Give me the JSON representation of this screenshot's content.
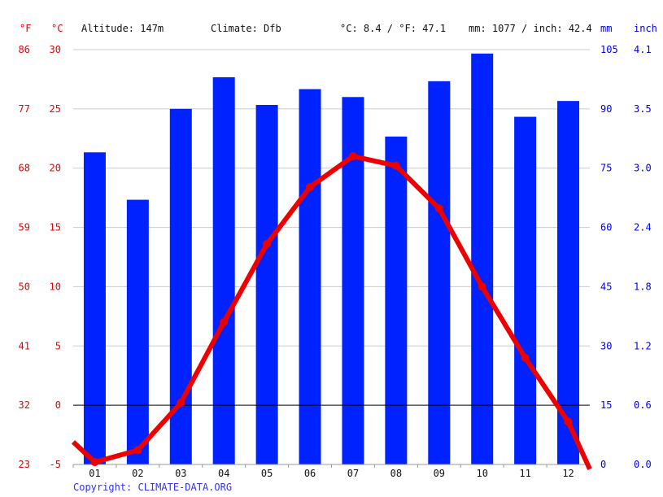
{
  "header": {
    "unit_f": "°F",
    "unit_c": "°C",
    "altitude": "Altitude: 147m",
    "climate": "Climate: Dfb",
    "temp_avg": "°C: 8.4 / °F: 47.1",
    "precip_avg": "mm: 1077 / inch: 42.4",
    "unit_mm": "mm",
    "unit_inch": "inch"
  },
  "copyright": "Copyright: CLIMATE-DATA.ORG",
  "colors": {
    "bars": "#0022ff",
    "line": "#ee0000",
    "grid": "#cccccc",
    "zero": "#000000",
    "axis_c": "#ee0000",
    "axis_mm": "#0000ee"
  },
  "chart_data": {
    "type": "bar",
    "categories": [
      "01",
      "02",
      "03",
      "04",
      "05",
      "06",
      "07",
      "08",
      "09",
      "10",
      "11",
      "12"
    ],
    "series": [
      {
        "axis": "precipitation_mm",
        "chart_type": "bar",
        "values": [
          79,
          67,
          90,
          98,
          91,
          95,
          93,
          83,
          97,
          104,
          88,
          92
        ]
      },
      {
        "axis": "temperature_c",
        "chart_type": "line",
        "values": [
          -4.8,
          -3.8,
          0.2,
          7.0,
          13.6,
          18.4,
          21.0,
          20.2,
          16.6,
          10.0,
          4.0,
          -1.4
        ]
      }
    ],
    "line_start_value": -3.1,
    "line_end_value": -5.4,
    "left_axis_f": {
      "ticks": [
        23,
        32,
        41,
        50,
        59,
        68,
        77,
        86
      ]
    },
    "left_axis_c": {
      "ticks": [
        -5,
        0,
        5,
        10,
        15,
        20,
        25,
        30
      ],
      "ylim": [
        -5,
        30
      ]
    },
    "right_axis_mm": {
      "ticks": [
        0,
        15,
        30,
        45,
        60,
        75,
        90,
        105
      ],
      "ylim": [
        0,
        105
      ]
    },
    "right_axis_inch": {
      "ticks": [
        "0.0",
        "0.6",
        "1.2",
        "1.8",
        "2.4",
        "3.0",
        "3.5",
        "4.1"
      ]
    },
    "grid": true
  }
}
